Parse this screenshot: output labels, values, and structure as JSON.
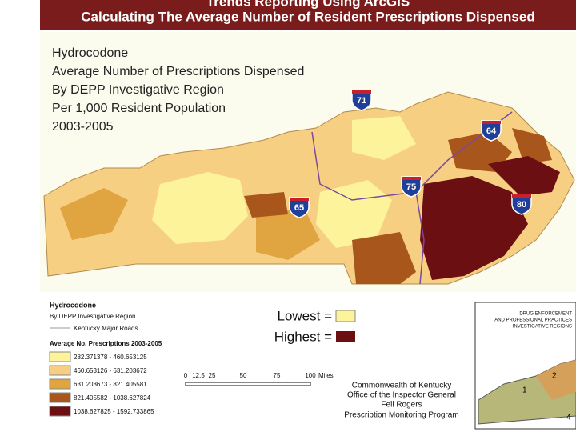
{
  "header": {
    "title": "Trends Reporting Using ArcGIS",
    "subtitle": "Calculating The Average Number of Resident Prescriptions Dispensed"
  },
  "map": {
    "title_lines": [
      "Hydrocodone",
      "Average Number of Prescriptions Dispensed",
      "By DEPP Investigative Region",
      "Per 1,000 Resident Population",
      "2003-2005"
    ],
    "interstates": [
      "71",
      "64",
      "75",
      "65",
      "80"
    ]
  },
  "legend": {
    "title": "Hydrocodone",
    "subtitle": "By DEPP Investigative Region",
    "roads": "Kentucky Major Roads",
    "bins_title": "Average No. Prescriptions 2003-2005",
    "bins": [
      "282.371378 - 460.653125",
      "460.653126 - 631.203672",
      "631.203673 - 821.405581",
      "821.405582 - 1038.627824",
      "1038.627825 - 1592.733865"
    ],
    "lowest": "Lowest =",
    "highest": "Highest ="
  },
  "scale": {
    "ticks": [
      "0",
      "12.5",
      "25",
      "50",
      "75",
      "100"
    ],
    "unit": "Miles"
  },
  "credits": [
    "Commonwealth of Kentucky",
    "Office of the Inspector General",
    "Fell Rogers",
    "Prescription Monitoring Program"
  ],
  "inset": {
    "title_lines": [
      "DRUG ENFORCEMENT",
      "AND PROFESSIONAL PRACTICES",
      "INVESTIGATIVE REGIONS"
    ],
    "regions": [
      "1",
      "2",
      "4"
    ]
  }
}
